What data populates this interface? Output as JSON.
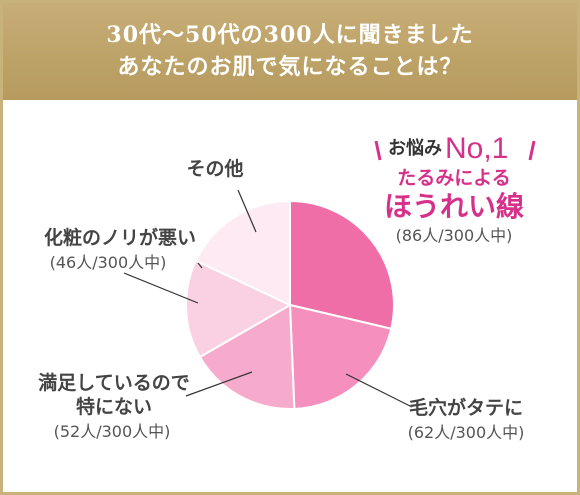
{
  "header": {
    "line1": "30代〜50代の300人に聞きました",
    "line2": "あなたのお肌で気になることは？"
  },
  "top_badge": {
    "prefix": "お悩み",
    "rank": "No,1",
    "sub": "たるみによる",
    "main": "ほうれい線",
    "count": "(86人/300人中)"
  },
  "labels": [
    {
      "name": "その他",
      "count": ""
    },
    {
      "name": "化粧のノリが悪い",
      "count": "(46人/300人中)"
    },
    {
      "name": "満足しているので",
      "name2": "特にない",
      "count": "(52人/300人中)"
    },
    {
      "name": "毛穴がタテに",
      "count": "(62人/300人中)"
    }
  ],
  "chart_data": {
    "type": "pie",
    "total": 300,
    "slices": [
      {
        "label": "たるみによるほうれい線",
        "value": 86,
        "color": "#ef6ea8"
      },
      {
        "label": "毛穴がタテに",
        "value": 62,
        "color": "#f48fbe"
      },
      {
        "label": "満足しているので特にない",
        "value": 52,
        "color": "#f6abcd"
      },
      {
        "label": "化粧のノリが悪い",
        "value": 46,
        "color": "#fad0e3"
      },
      {
        "label": "その他",
        "value": 54,
        "color": "#fdeaf2"
      }
    ]
  }
}
